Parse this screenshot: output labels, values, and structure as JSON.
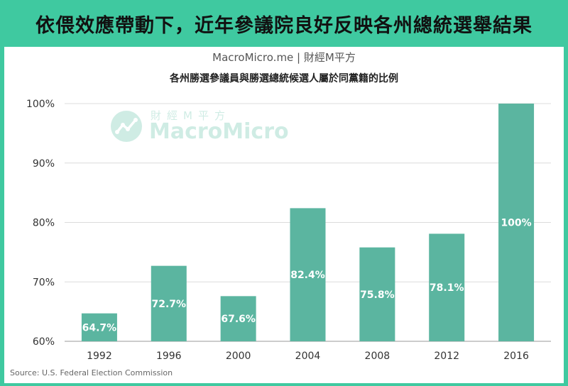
{
  "headline": "依偎效應帶動下，近年參議院良好反映各州總統選舉結果",
  "brand_line": "MacroMicro.me | 財經M平方",
  "watermark": {
    "cn": "財經M平方",
    "en": "MacroMicro",
    "icon": "chart-trend-icon"
  },
  "source": "Source: U.S. Federal Election Commission",
  "colors": {
    "accent": "#3fc9a0",
    "bar": "#5bb5a0",
    "bar_label": "#ffffff"
  },
  "chart_data": {
    "type": "bar",
    "title": "各州勝選參議員與勝選總統候選人屬於同黨籍的比例",
    "xlabel": "",
    "ylabel": "",
    "categories": [
      "1992",
      "1996",
      "2000",
      "2004",
      "2008",
      "2012",
      "2016"
    ],
    "values": [
      64.7,
      72.7,
      67.6,
      82.4,
      75.8,
      78.1,
      100
    ],
    "value_labels": [
      "64.7%",
      "72.7%",
      "67.6%",
      "82.4%",
      "75.8%",
      "78.1%",
      "100%"
    ],
    "ylim": [
      60,
      100
    ],
    "yticks": [
      60,
      70,
      80,
      90,
      100
    ],
    "ytick_labels": [
      "60%",
      "70%",
      "80%",
      "90%",
      "100%"
    ],
    "grid": true,
    "legend": "none"
  }
}
